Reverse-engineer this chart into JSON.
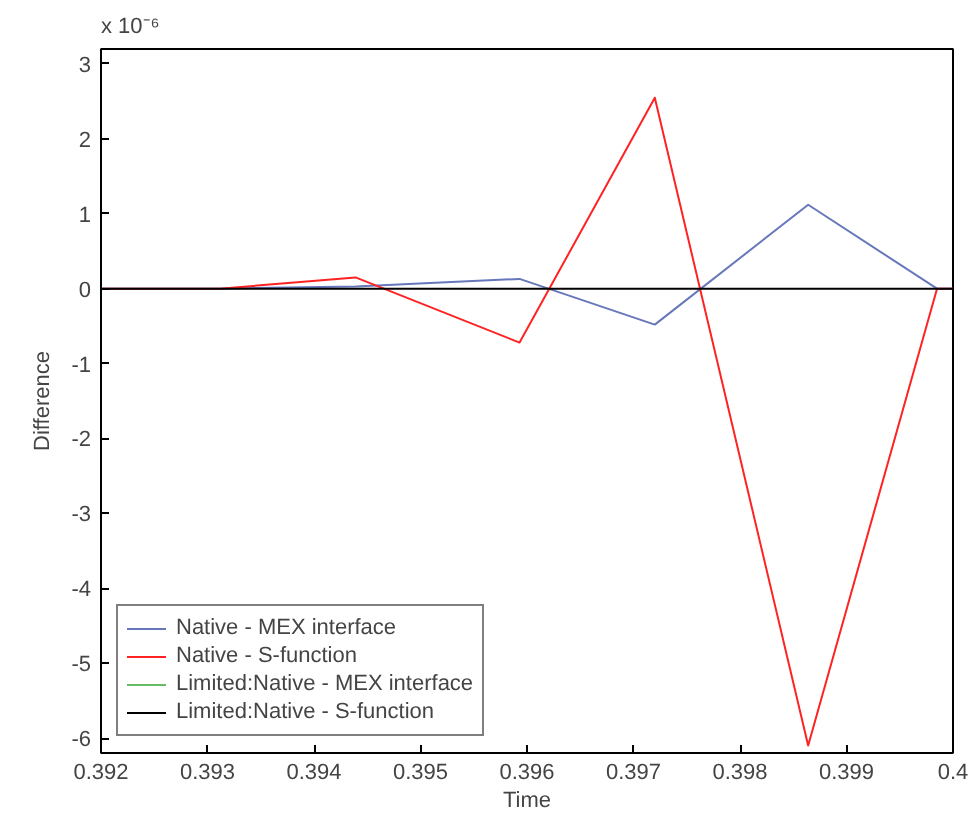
{
  "chart_data": {
    "type": "line",
    "xlabel": "Time",
    "ylabel": "Difference",
    "annotations": [
      "x 10⁻⁶"
    ],
    "x": [
      0.392,
      0.39312,
      0.39439,
      0.39593,
      0.3972,
      0.39864,
      0.39985,
      0.4
    ],
    "xlim": [
      0.392,
      0.4
    ],
    "xticks": [
      0.392,
      0.393,
      0.394,
      0.395,
      0.396,
      0.397,
      0.398,
      0.399,
      0.4
    ],
    "ylim": [
      -6.2,
      3.2
    ],
    "yticks": [
      -6,
      -5,
      -4,
      -3,
      -2,
      -1,
      0,
      1,
      2,
      3
    ],
    "grid": false,
    "legend": "bottom left",
    "marker": "none",
    "line_style": "solid",
    "series": [
      {
        "name": "Native - MEX interface",
        "color": "#6677bb",
        "values": [
          0,
          0,
          0.03,
          0.13,
          -0.48,
          1.12,
          0,
          0
        ]
      },
      {
        "name": "Native - S-function",
        "color": "#ff2222",
        "values": [
          0,
          0,
          0.15,
          -0.72,
          2.55,
          -6.1,
          0,
          0
        ]
      },
      {
        "name": "Limited:Native - MEX interface",
        "color": "#66bb66",
        "values": [
          null,
          null,
          null,
          null,
          null,
          null,
          null,
          null
        ]
      },
      {
        "name": "Limited:Native - S-function",
        "color": "#000000",
        "values": [
          0,
          0,
          0,
          0,
          0,
          0,
          0,
          0
        ]
      }
    ]
  }
}
